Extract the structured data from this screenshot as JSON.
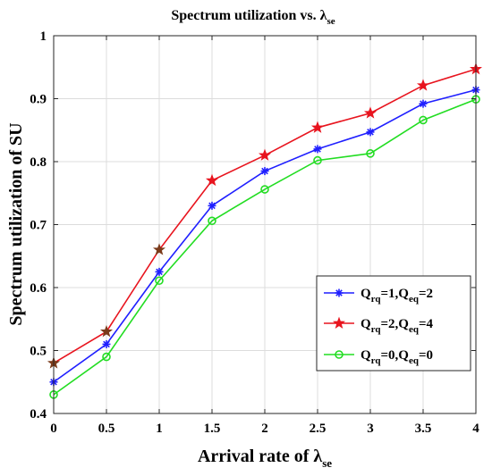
{
  "chart_data": {
    "type": "line",
    "title": "Spectrum utilization vs. λ",
    "title_subscript": "se",
    "xlabel": "Arrival rate of λ",
    "xlabel_subscript": "se",
    "ylabel": "Spectrum utilization of SU",
    "x": [
      0,
      0.5,
      1,
      1.5,
      2,
      2.5,
      3,
      3.5,
      4
    ],
    "xlim": [
      0,
      4
    ],
    "ylim": [
      0.4,
      1.0
    ],
    "xticks": [
      "0",
      "0.5",
      "1",
      "1.5",
      "2",
      "2.5",
      "3",
      "3.5",
      "4"
    ],
    "yticks": [
      "0.4",
      "0.5",
      "0.6",
      "0.7",
      "0.8",
      "0.9",
      "1"
    ],
    "grid": true,
    "legend_position": "center-right",
    "series": [
      {
        "name": "Q_rq=1,Q_eq=2",
        "legend_parts": [
          "Q",
          "rq",
          "=1,Q",
          "eq",
          "=2"
        ],
        "color": "#1f1fff",
        "marker": "asterisk",
        "values": [
          0.45,
          0.51,
          0.625,
          0.73,
          0.785,
          0.82,
          0.847,
          0.892,
          0.914
        ]
      },
      {
        "name": "Q_rq=2,Q_eq=4",
        "legend_parts": [
          "Q",
          "rq",
          "=2,Q",
          "eq",
          "=4"
        ],
        "color": "#e8141e",
        "marker_color": "#7a3a1a",
        "marker": "star",
        "values": [
          0.48,
          0.53,
          0.66,
          0.77,
          0.81,
          0.854,
          0.877,
          0.921,
          0.947
        ]
      },
      {
        "name": "Q_rq=0,Q_eq=0",
        "legend_parts": [
          "Q",
          "rq",
          "=0,Q",
          "eq",
          "=0"
        ],
        "color": "#22dd22",
        "marker": "circle",
        "values": [
          0.43,
          0.49,
          0.611,
          0.706,
          0.756,
          0.802,
          0.813,
          0.866,
          0.899
        ]
      }
    ]
  }
}
